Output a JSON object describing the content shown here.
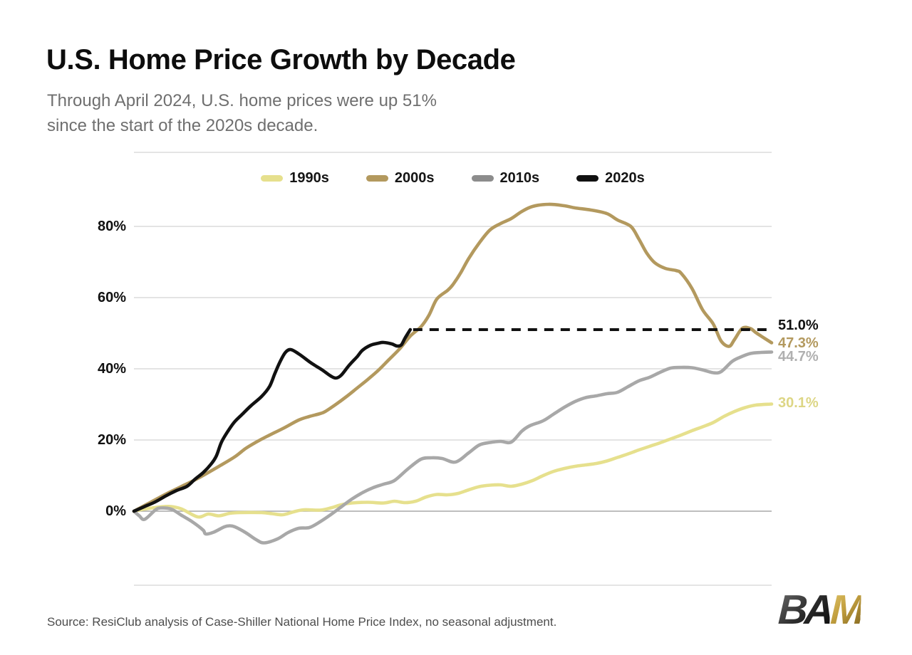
{
  "title": "U.S. Home Price Growth by Decade",
  "subtitle_line1": "Through April 2024, U.S. home prices were up 51%",
  "subtitle_line2": "since the start of the 2020s decade.",
  "source": "Source: ResiClub analysis of Case-Shiller National Home Price Index, no seasonal adjustment.",
  "logo": {
    "dark_text": "BA",
    "gold_text": "M"
  },
  "colors": {
    "title": "#0d0d0d",
    "subtitle": "#6f6f6f",
    "grid": "#dcdcdc",
    "zero_line": "#a8a8a8",
    "frame": "#d4d4d4",
    "series_1990s": "#e6e08d",
    "series_2000s": "#b3995e",
    "series_2010s": "#a8a8a8",
    "series_2020s": "#111111",
    "swatch_2010s": "#8c8c8c",
    "label_1990s": "#ddd685",
    "label_2000s": "#b3995e",
    "label_2010s": "#b0b0b0",
    "label_2020s": "#111111"
  },
  "legend": [
    {
      "label": "1990s",
      "color": "#e6e08d"
    },
    {
      "label": "2000s",
      "color": "#b3995e"
    },
    {
      "label": "2010s",
      "color": "#8c8c8c"
    },
    {
      "label": "2020s",
      "color": "#111111"
    }
  ],
  "chart_data": {
    "type": "line",
    "title": "U.S. Home Price Growth by Decade",
    "x_unit": "months since start of decade",
    "x_range": [
      0,
      120
    ],
    "y_range_visible": [
      -12,
      88
    ],
    "y_gridlines": [
      0,
      20,
      40,
      60,
      80
    ],
    "y_ticks": [
      {
        "label": "0%",
        "value": 0
      },
      {
        "label": "20%",
        "value": 20
      },
      {
        "label": "40%",
        "value": 40
      },
      {
        "label": "60%",
        "value": 60
      },
      {
        "label": "80%",
        "value": 80
      }
    ],
    "legend_position": "top-center",
    "target_line": {
      "value": 51.0,
      "start_month": 52,
      "end_month": 120.3,
      "label": "51.0%",
      "style": "dashed",
      "color": "#111111"
    },
    "series": [
      {
        "name": "1990s",
        "color": "#e6e08d",
        "end_label": "30.1%",
        "end_label_color": "#ddd685",
        "points": [
          [
            0,
            0
          ],
          [
            2,
            0.6
          ],
          [
            5,
            1.2
          ],
          [
            7,
            1.3
          ],
          [
            9,
            0.6
          ],
          [
            12,
            -1.6
          ],
          [
            14,
            -0.8
          ],
          [
            16,
            -1.3
          ],
          [
            18,
            -0.6
          ],
          [
            20,
            -0.4
          ],
          [
            24,
            -0.4
          ],
          [
            26,
            -0.7
          ],
          [
            28,
            -1.0
          ],
          [
            30,
            -0.2
          ],
          [
            32,
            0.4
          ],
          [
            35,
            0.3
          ],
          [
            37,
            0.9
          ],
          [
            39,
            1.8
          ],
          [
            41,
            2.3
          ],
          [
            44,
            2.5
          ],
          [
            47,
            2.3
          ],
          [
            49,
            2.8
          ],
          [
            51,
            2.4
          ],
          [
            53,
            2.8
          ],
          [
            55,
            4.0
          ],
          [
            57,
            4.7
          ],
          [
            59,
            4.6
          ],
          [
            61,
            5.0
          ],
          [
            63,
            6.0
          ],
          [
            65,
            6.9
          ],
          [
            67,
            7.3
          ],
          [
            69,
            7.4
          ],
          [
            71,
            7.0
          ],
          [
            73,
            7.6
          ],
          [
            75,
            8.6
          ],
          [
            77,
            10.0
          ],
          [
            79,
            11.2
          ],
          [
            81,
            12.0
          ],
          [
            83,
            12.6
          ],
          [
            85,
            13.0
          ],
          [
            87,
            13.4
          ],
          [
            89,
            14.1
          ],
          [
            91,
            15.1
          ],
          [
            93,
            16.1
          ],
          [
            95,
            17.2
          ],
          [
            97,
            18.2
          ],
          [
            99,
            19.2
          ],
          [
            101,
            20.3
          ],
          [
            103,
            21.4
          ],
          [
            105,
            22.6
          ],
          [
            107,
            23.7
          ],
          [
            109,
            24.9
          ],
          [
            111,
            26.6
          ],
          [
            113,
            28.0
          ],
          [
            115,
            29.1
          ],
          [
            117,
            29.8
          ],
          [
            120,
            30.1
          ]
        ]
      },
      {
        "name": "2000s",
        "color": "#b3995e",
        "end_label": "47.3%",
        "end_label_color": "#b3995e",
        "points": [
          [
            0,
            0
          ],
          [
            3,
            2.4
          ],
          [
            6,
            4.8
          ],
          [
            9,
            7.0
          ],
          [
            12,
            9.2
          ],
          [
            16,
            12.6
          ],
          [
            19,
            15.3
          ],
          [
            21,
            17.6
          ],
          [
            23,
            19.4
          ],
          [
            25,
            21.0
          ],
          [
            28,
            23.2
          ],
          [
            31,
            25.6
          ],
          [
            33,
            26.6
          ],
          [
            35,
            27.4
          ],
          [
            36,
            28.0
          ],
          [
            38,
            30.0
          ],
          [
            40,
            32.2
          ],
          [
            42,
            34.6
          ],
          [
            44,
            37.0
          ],
          [
            46,
            39.6
          ],
          [
            48,
            42.6
          ],
          [
            50,
            45.6
          ],
          [
            52,
            49.2
          ],
          [
            54,
            51.8
          ],
          [
            55.5,
            55.0
          ],
          [
            57,
            59.6
          ],
          [
            59,
            62.0
          ],
          [
            60,
            63.6
          ],
          [
            61.5,
            67.0
          ],
          [
            63,
            71.0
          ],
          [
            65,
            75.4
          ],
          [
            67,
            79.0
          ],
          [
            69,
            80.8
          ],
          [
            71,
            82.2
          ],
          [
            73,
            84.2
          ],
          [
            75,
            85.6
          ],
          [
            78,
            86.2
          ],
          [
            81,
            85.8
          ],
          [
            83,
            85.2
          ],
          [
            86,
            84.6
          ],
          [
            89,
            83.6
          ],
          [
            91,
            81.8
          ],
          [
            93.5,
            80.0
          ],
          [
            95,
            76.5
          ],
          [
            96.5,
            72.5
          ],
          [
            98,
            69.8
          ],
          [
            100,
            68.2
          ],
          [
            102,
            67.6
          ],
          [
            103,
            66.8
          ],
          [
            105,
            62.6
          ],
          [
            107,
            56.6
          ],
          [
            109,
            52.6
          ],
          [
            110.5,
            47.8
          ],
          [
            112,
            46.3
          ],
          [
            113,
            48.2
          ],
          [
            114.5,
            51.4
          ],
          [
            116,
            51.3
          ],
          [
            117,
            50.2
          ],
          [
            118,
            49.2
          ],
          [
            120,
            47.3
          ]
        ]
      },
      {
        "name": "2010s",
        "color": "#a8a8a8",
        "end_label": "44.7%",
        "end_label_color": "#b0b0b0",
        "points": [
          [
            0,
            0
          ],
          [
            1,
            -1.3
          ],
          [
            2,
            -2.3
          ],
          [
            4,
            0.3
          ],
          [
            5,
            0.9
          ],
          [
            7,
            0.6
          ],
          [
            9,
            -1.2
          ],
          [
            11,
            -3.0
          ],
          [
            13,
            -5.3
          ],
          [
            13.5,
            -6.4
          ],
          [
            15,
            -5.9
          ],
          [
            17,
            -4.4
          ],
          [
            18,
            -4.1
          ],
          [
            19,
            -4.4
          ],
          [
            21,
            -6.0
          ],
          [
            23,
            -8.0
          ],
          [
            24.5,
            -8.9
          ],
          [
            27,
            -7.8
          ],
          [
            29,
            -6.0
          ],
          [
            31,
            -4.8
          ],
          [
            33,
            -4.6
          ],
          [
            35,
            -3.0
          ],
          [
            37,
            -1.0
          ],
          [
            39,
            1.2
          ],
          [
            41,
            3.4
          ],
          [
            43,
            5.2
          ],
          [
            45,
            6.6
          ],
          [
            47,
            7.6
          ],
          [
            49,
            8.6
          ],
          [
            51.5,
            11.8
          ],
          [
            54,
            14.6
          ],
          [
            56,
            15.0
          ],
          [
            58,
            14.8
          ],
          [
            60.5,
            13.8
          ],
          [
            63,
            16.4
          ],
          [
            65,
            18.6
          ],
          [
            67,
            19.3
          ],
          [
            69,
            19.6
          ],
          [
            71,
            19.4
          ],
          [
            73,
            22.5
          ],
          [
            74.5,
            24.0
          ],
          [
            77,
            25.4
          ],
          [
            79,
            27.3
          ],
          [
            81,
            29.2
          ],
          [
            83,
            30.8
          ],
          [
            85,
            31.9
          ],
          [
            87,
            32.4
          ],
          [
            89,
            33.0
          ],
          [
            91,
            33.4
          ],
          [
            93,
            35.0
          ],
          [
            95,
            36.6
          ],
          [
            97,
            37.6
          ],
          [
            99,
            39.0
          ],
          [
            101,
            40.2
          ],
          [
            103,
            40.4
          ],
          [
            105,
            40.3
          ],
          [
            107,
            39.7
          ],
          [
            109,
            38.9
          ],
          [
            110.5,
            39.2
          ],
          [
            112.5,
            42.0
          ],
          [
            114,
            43.2
          ],
          [
            116,
            44.3
          ],
          [
            118,
            44.6
          ],
          [
            120,
            44.7
          ]
        ]
      },
      {
        "name": "2020s",
        "color": "#111111",
        "end_label": "51.0%",
        "end_label_color": "#111111",
        "points": [
          [
            0,
            0
          ],
          [
            2,
            1.3
          ],
          [
            4,
            2.6
          ],
          [
            6,
            4.3
          ],
          [
            8,
            5.8
          ],
          [
            10,
            7.0
          ],
          [
            11.5,
            9.0
          ],
          [
            13,
            10.8
          ],
          [
            14.5,
            13.2
          ],
          [
            15.5,
            15.5
          ],
          [
            16.5,
            19.5
          ],
          [
            18,
            23.2
          ],
          [
            19,
            25.2
          ],
          [
            20.5,
            27.4
          ],
          [
            22,
            29.6
          ],
          [
            24,
            32.2
          ],
          [
            25.5,
            35.0
          ],
          [
            26.5,
            38.6
          ],
          [
            27.5,
            42.0
          ],
          [
            28.5,
            44.6
          ],
          [
            29.5,
            45.4
          ],
          [
            31,
            44.2
          ],
          [
            33,
            42.0
          ],
          [
            34,
            41.0
          ],
          [
            35.5,
            39.6
          ],
          [
            37,
            38.0
          ],
          [
            38,
            37.4
          ],
          [
            39,
            38.2
          ],
          [
            40.5,
            41.0
          ],
          [
            42,
            43.4
          ],
          [
            43,
            45.2
          ],
          [
            44.5,
            46.6
          ],
          [
            46,
            47.2
          ],
          [
            47,
            47.4
          ],
          [
            48.5,
            47.0
          ],
          [
            49.5,
            46.4
          ],
          [
            50.3,
            46.7
          ],
          [
            51,
            48.6
          ],
          [
            52,
            51.0
          ]
        ]
      }
    ]
  }
}
